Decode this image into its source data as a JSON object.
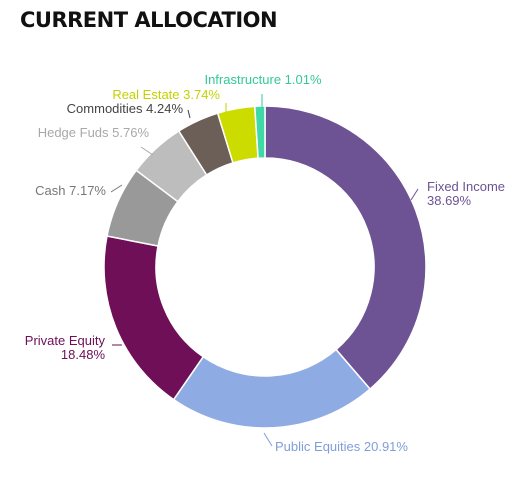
{
  "chart_data": {
    "type": "pie",
    "title": "CURRENT ALLOCATION",
    "donut": true,
    "legend": "none",
    "slices": [
      {
        "name": "Fixed Income",
        "value": 38.69,
        "label_lines": [
          "Fixed Income",
          "38.69%"
        ],
        "color": "#6d5294",
        "label_color": "#6d5294"
      },
      {
        "name": "Public Equities",
        "value": 20.91,
        "label_lines": [
          "Public Equities 20.91%"
        ],
        "color": "#8fabe3",
        "label_color": "#7f9ed8"
      },
      {
        "name": "Private Equity",
        "value": 18.48,
        "label_lines": [
          "Private Equity",
          "18.48%"
        ],
        "color": "#6e0f57",
        "label_color": "#6e0f57"
      },
      {
        "name": "Cash",
        "value": 7.17,
        "label_lines": [
          "Cash 7.17%"
        ],
        "color": "#999999",
        "label_color": "#777777"
      },
      {
        "name": "Hedge Fuds",
        "value": 5.76,
        "label_lines": [
          "Hedge Fuds 5.76%"
        ],
        "color": "#bdbdbd",
        "label_color": "#a8a8a8"
      },
      {
        "name": "Commodities",
        "value": 4.24,
        "label_lines": [
          "Commodities 4.24%"
        ],
        "color": "#6c5f57",
        "label_color": "#444444"
      },
      {
        "name": "Real Estate",
        "value": 3.74,
        "label_lines": [
          "Real Estate 3.74%"
        ],
        "color": "#ccdc00",
        "label_color": "#c2d200"
      },
      {
        "name": "Infrastructure",
        "value": 1.01,
        "label_lines": [
          "Infrastructure 1.01%"
        ],
        "color": "#3fd9a8",
        "label_color": "#33c99a"
      }
    ]
  }
}
